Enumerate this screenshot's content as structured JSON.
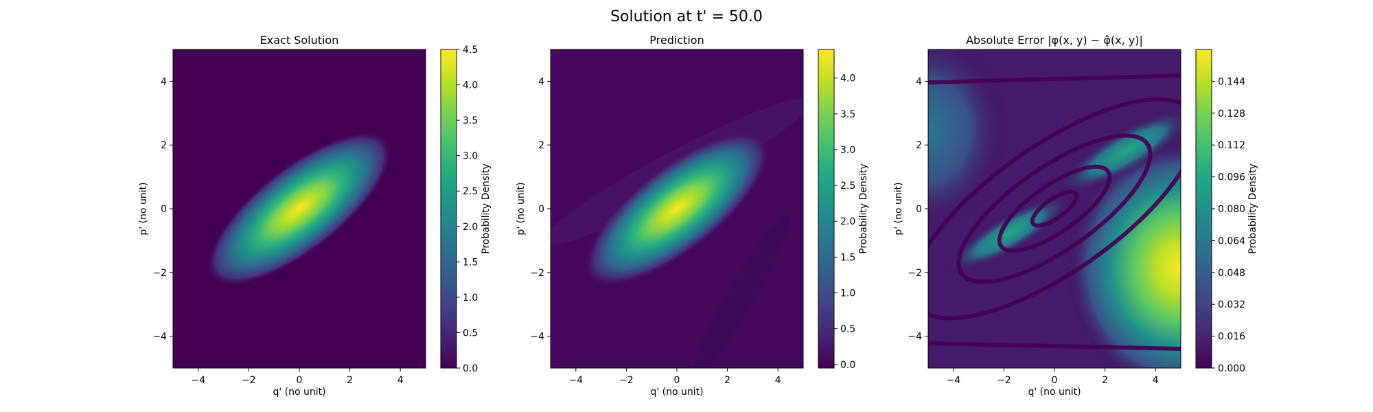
{
  "figure": {
    "title": "Solution at t' = 50.0"
  },
  "chart_data": [
    {
      "type": "heatmap",
      "id": "exact",
      "title": "Exact Solution",
      "xlabel": "q' (no unit)",
      "ylabel": "p' (no unit)",
      "xlim": [
        -5,
        5
      ],
      "ylim": [
        -5,
        5
      ],
      "xticks": [
        -4,
        -2,
        0,
        2,
        4
      ],
      "yticks": [
        -4,
        -2,
        0,
        2,
        4
      ],
      "colorbar": {
        "label": "Probability Density",
        "range": [
          0.0,
          4.5
        ],
        "ticks": [
          "0.0",
          "0.5",
          "1.0",
          "1.5",
          "2.0",
          "2.5",
          "3.0",
          "3.5",
          "4.0",
          "4.5"
        ]
      },
      "colormap": "viridis",
      "peak": {
        "x": 0,
        "y": 0,
        "value": 4.5
      }
    },
    {
      "type": "heatmap",
      "id": "prediction",
      "title": "Prediction",
      "xlabel": "q' (no unit)",
      "ylabel": "p' (no unit)",
      "xlim": [
        -5,
        5
      ],
      "ylim": [
        -5,
        5
      ],
      "xticks": [
        -4,
        -2,
        0,
        2,
        4
      ],
      "yticks": [
        -4,
        -2,
        0,
        2,
        4
      ],
      "colorbar": {
        "label": "Probability Density",
        "range": [
          -0.05,
          4.4
        ],
        "ticks": [
          "0.0",
          "0.5",
          "1.0",
          "1.5",
          "2.0",
          "2.5",
          "3.0",
          "3.5",
          "4.0"
        ]
      },
      "colormap": "viridis",
      "peak": {
        "x": 0,
        "y": 0,
        "value": 4.4
      }
    },
    {
      "type": "heatmap",
      "id": "error",
      "title": "Absolute Error |φ(x, y) − φ̂(x, y)|",
      "xlabel": "q' (no unit)",
      "ylabel": "p' (no unit)",
      "xlim": [
        -5,
        5
      ],
      "ylim": [
        -5,
        5
      ],
      "xticks": [
        -4,
        -2,
        0,
        2,
        4
      ],
      "yticks": [
        -4,
        -2,
        0,
        2,
        4
      ],
      "colorbar": {
        "label": "Probability Density",
        "range": [
          0.0,
          0.16
        ],
        "ticks": [
          "0.000",
          "0.016",
          "0.032",
          "0.048",
          "0.064",
          "0.080",
          "0.096",
          "0.112",
          "0.128",
          "0.144"
        ]
      },
      "colormap": "viridis",
      "max_error": {
        "x": 5,
        "y": -2,
        "value": 0.16
      }
    }
  ]
}
